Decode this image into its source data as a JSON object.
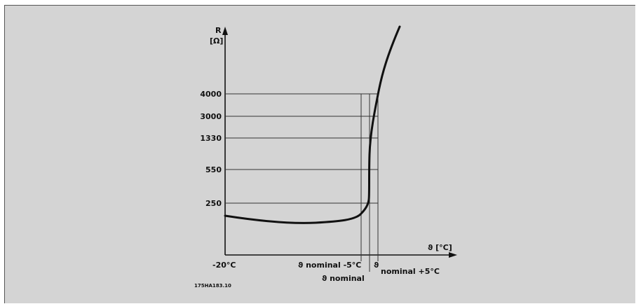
{
  "colors": {
    "background": "#d4d4d4",
    "ink": "#111111",
    "grid": "#333333"
  },
  "chart_data": {
    "type": "line",
    "ylabel_top": "R",
    "ylabel_unit": "[Ω]",
    "xlabel": "ϑ [°C]",
    "y_ticks": [
      "4000",
      "3000",
      "1330",
      "550",
      "250"
    ],
    "x_labels": {
      "left": "-20°C",
      "minus": "ϑ nominal -5°C",
      "nominal": "ϑ nominal",
      "plus_symbol": "ϑ",
      "plus": "nominal +5°C"
    },
    "figure_code": "175HA183.10"
  }
}
